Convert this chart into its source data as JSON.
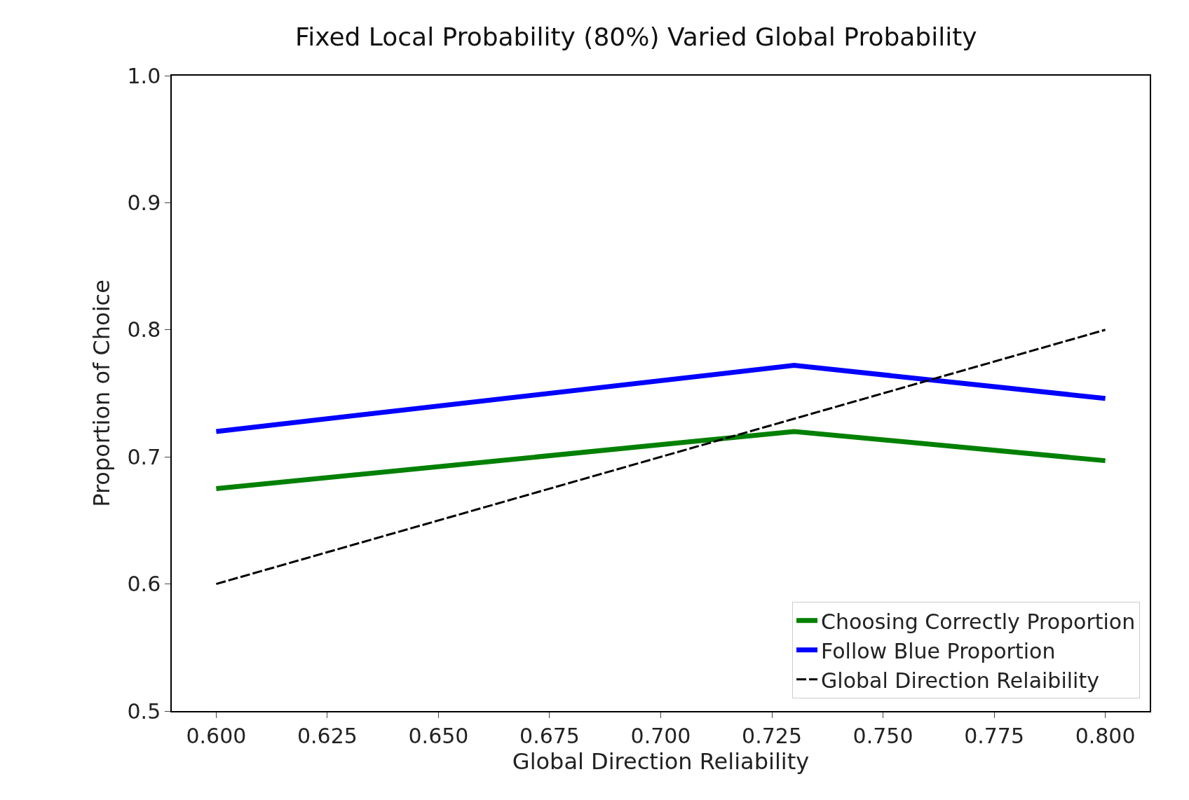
{
  "chart_data": {
    "type": "line",
    "title": "Fixed Local Probability (80%) Varied Global Probability",
    "xlabel": "Global Direction Reliability",
    "ylabel": "Proportion of Choice",
    "x": [
      0.6,
      0.73,
      0.8
    ],
    "series": [
      {
        "name": "Choosing Correctly Proportion",
        "color": "#008000",
        "values": [
          0.675,
          0.72,
          0.697
        ],
        "line_style": "solid"
      },
      {
        "name": "Follow Blue Proportion",
        "color": "#0000ff",
        "values": [
          0.72,
          0.772,
          0.746
        ],
        "line_style": "solid"
      },
      {
        "name": "Global Direction Relaibility",
        "color": "#000000",
        "values": [
          0.6,
          0.73,
          0.8
        ],
        "line_style": "dashed"
      }
    ],
    "xlim": [
      0.59,
      0.81
    ],
    "xticks": [
      {
        "value": 0.6,
        "label": "0.600"
      },
      {
        "value": 0.625,
        "label": "0.625"
      },
      {
        "value": 0.65,
        "label": "0.650"
      },
      {
        "value": 0.675,
        "label": "0.675"
      },
      {
        "value": 0.7,
        "label": "0.700"
      },
      {
        "value": 0.725,
        "label": "0.725"
      },
      {
        "value": 0.75,
        "label": "0.750"
      },
      {
        "value": 0.775,
        "label": "0.775"
      },
      {
        "value": 0.8,
        "label": "0.800"
      }
    ],
    "ylim": [
      0.5,
      1.0
    ],
    "yticks": [
      0.5,
      0.6,
      0.7,
      0.8,
      0.9,
      {
        "value": 1.0,
        "label": "1.0"
      }
    ],
    "legend": "bottom right",
    "marker": "none"
  }
}
